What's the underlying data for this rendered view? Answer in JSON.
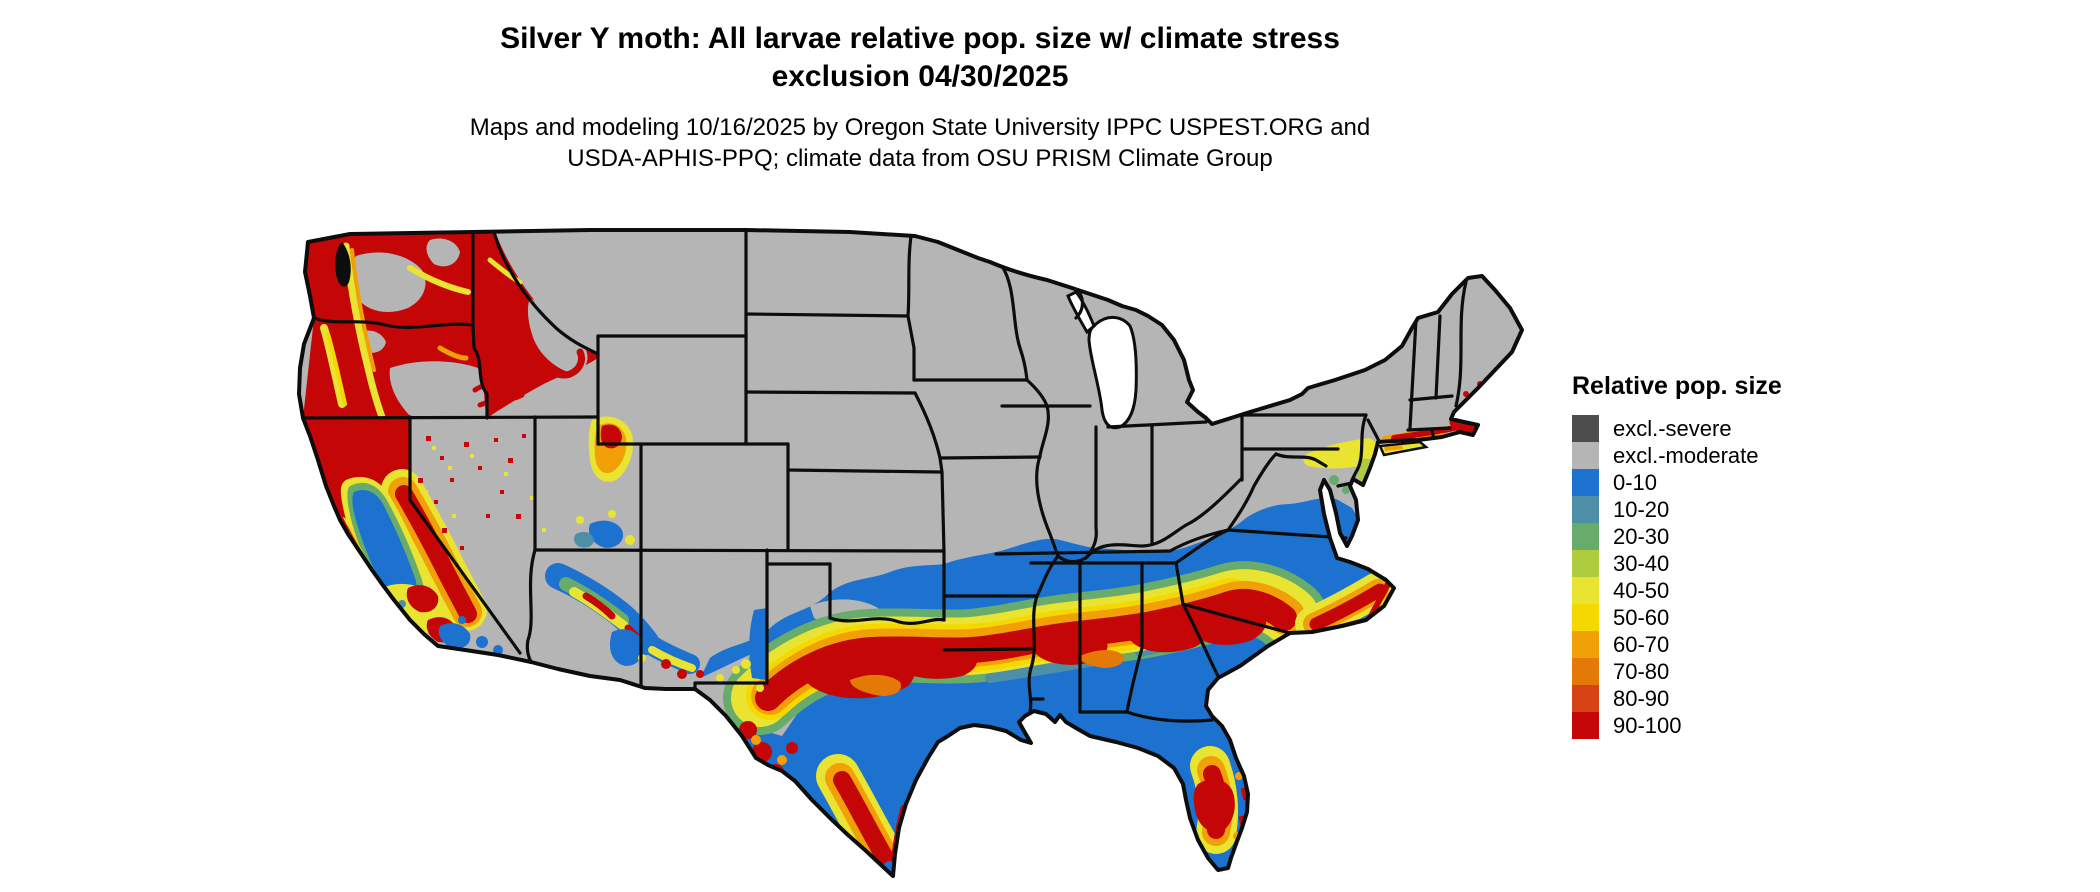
{
  "header": {
    "title": "Silver Y moth: All larvae relative pop. size w/ climate stress\nexclusion 04/30/2025",
    "subtitle": "Maps and modeling 10/16/2025 by Oregon State University IPPC USPEST.ORG and\nUSDA-APHIS-PPQ; climate data from OSU PRISM Climate Group"
  },
  "legend": {
    "title": "Relative pop. size",
    "items": [
      {
        "label": "excl.-severe",
        "color": "#4D4D4D"
      },
      {
        "label": "excl.-moderate",
        "color": "#B5B5B5"
      },
      {
        "label": "0-10",
        "color": "#1C72CE"
      },
      {
        "label": "10-20",
        "color": "#4D8FA6"
      },
      {
        "label": "20-30",
        "color": "#67AC6B"
      },
      {
        "label": "30-40",
        "color": "#AECC3D"
      },
      {
        "label": "40-50",
        "color": "#E9E431"
      },
      {
        "label": "50-60",
        "color": "#F5D800"
      },
      {
        "label": "60-70",
        "color": "#F2A007"
      },
      {
        "label": "70-80",
        "color": "#E57908"
      },
      {
        "label": "80-90",
        "color": "#D84315"
      },
      {
        "label": "90-100",
        "color": "#C40606"
      }
    ]
  },
  "map": {
    "description": "Contiguous United States raster map of Silver Y moth relative population size with climate stress exclusion",
    "excluded_regions": "Northern plains, Rockies, Midwest and interior Northeast shown as moderate-exclusion gray",
    "high_population_regions": "Pacific Northwest, northern California, central Texas through the Deep South and Carolinas coastal plain, central Florida, southern New England coast",
    "low_population_regions": "Mid-South, mid-Atlantic, Gulf Coast, south Florida, California Central Valley shown blue (0-10)"
  }
}
